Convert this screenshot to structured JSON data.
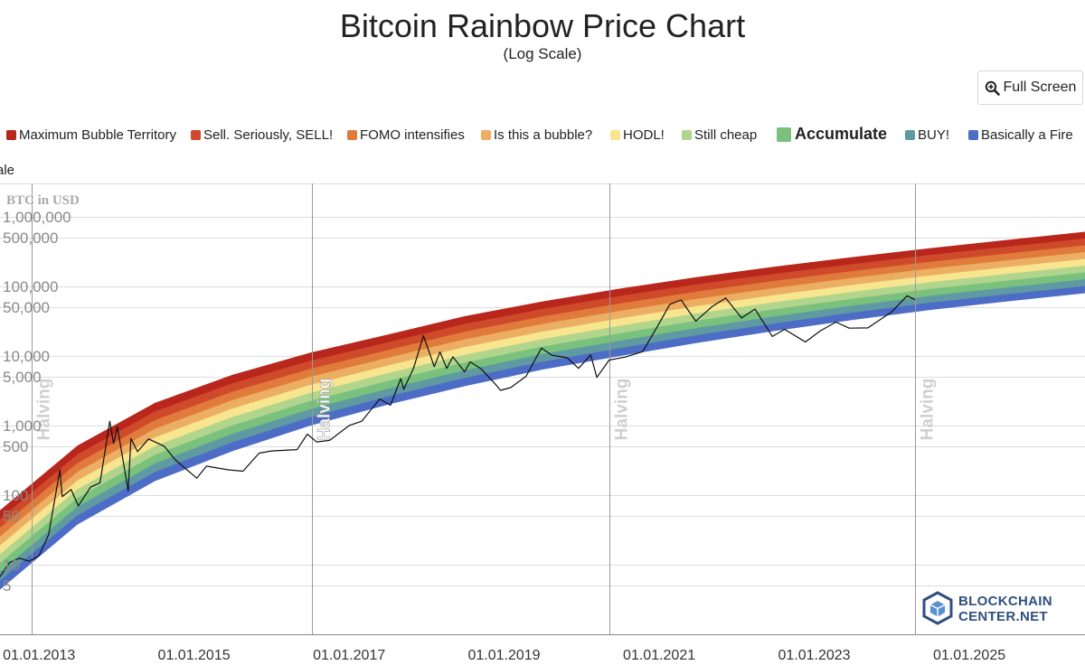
{
  "header": {
    "full_screen_label": "Full Screen"
  },
  "colors": {
    "bands": [
      "#b8261c",
      "#cf4a2a",
      "#e07b3c",
      "#ecae62",
      "#f8e58f",
      "#b1d58d",
      "#79c17d",
      "#5f9aa3",
      "#4d6cc5"
    ],
    "price_line": "#111111",
    "halving_line": "#9a9a9a",
    "grid": "#dddddd"
  },
  "chart_data": {
    "type": "line",
    "title": "Bitcoin Rainbow Price Chart",
    "subtitle": "(Log Scale)",
    "ylabel": "BTC in USD",
    "y_scale": "log",
    "ylim": [
      1,
      3000000
    ],
    "xlim": [
      "2012-07-01",
      "2026-06-30"
    ],
    "y_ticks": [
      {
        "value": 1000000,
        "label": "1,000,000"
      },
      {
        "value": 500000,
        "label": "500,000"
      },
      {
        "value": 100000,
        "label": "100,000"
      },
      {
        "value": 50000,
        "label": "50,000"
      },
      {
        "value": 10000,
        "label": "10,000"
      },
      {
        "value": 5000,
        "label": "5,000"
      },
      {
        "value": 1000,
        "label": "1,000"
      },
      {
        "value": 500,
        "label": "500"
      },
      {
        "value": 100,
        "label": "100"
      },
      {
        "value": 50,
        "label": "50"
      },
      {
        "value": 10,
        "label": "10"
      },
      {
        "value": 5,
        "label": "5"
      }
    ],
    "x_ticks": [
      {
        "date": "2013-01-01",
        "label": "01.01.2013"
      },
      {
        "date": "2015-01-01",
        "label": "01.01.2015"
      },
      {
        "date": "2017-01-01",
        "label": "01.01.2017"
      },
      {
        "date": "2019-01-01",
        "label": "01.01.2019"
      },
      {
        "date": "2021-01-01",
        "label": "01.01.2021"
      },
      {
        "date": "2023-01-01",
        "label": "01.01.2023"
      },
      {
        "date": "2025-01-01",
        "label": "01.01.2025"
      }
    ],
    "halvings": [
      {
        "date": "2012-11-28",
        "label": "Halving",
        "highlight": false
      },
      {
        "date": "2016-07-09",
        "label": "Halving",
        "highlight": true
      },
      {
        "date": "2020-05-11",
        "label": "Halving",
        "highlight": false
      },
      {
        "date": "2024-04-20",
        "label": "Halving",
        "highlight": false
      }
    ],
    "legend": [
      {
        "label": "Maximum Bubble Territory",
        "color": "#b8261c"
      },
      {
        "label": "Sell. Seriously, SELL!",
        "color": "#cf4a2a"
      },
      {
        "label": "FOMO intensifies",
        "color": "#e07b3c"
      },
      {
        "label": "Is this a bubble?",
        "color": "#ecae62"
      },
      {
        "label": "HODL!",
        "color": "#f8e58f"
      },
      {
        "label": "Still cheap",
        "color": "#b1d58d"
      },
      {
        "label": "Accumulate",
        "color": "#79c17d",
        "emphasized": true
      },
      {
        "label": "BUY!",
        "color": "#5f9aa3"
      },
      {
        "label": "Basically a Fire",
        "color": "#4d6cc5"
      }
    ],
    "legend_wrap_text": "Sale",
    "bands": {
      "count": 9,
      "lower_edge": [
        {
          "date": "2012-07-01",
          "value": 4.4
        },
        {
          "date": "2013-07-01",
          "value": 38
        },
        {
          "date": "2014-07-01",
          "value": 160
        },
        {
          "date": "2015-07-01",
          "value": 430
        },
        {
          "date": "2016-07-01",
          "value": 1000
        },
        {
          "date": "2017-07-01",
          "value": 2000
        },
        {
          "date": "2018-07-01",
          "value": 3700
        },
        {
          "date": "2019-07-01",
          "value": 6400
        },
        {
          "date": "2020-07-01",
          "value": 10000
        },
        {
          "date": "2021-07-01",
          "value": 15500
        },
        {
          "date": "2022-07-01",
          "value": 23000
        },
        {
          "date": "2023-07-01",
          "value": 33000
        },
        {
          "date": "2024-07-01",
          "value": 46000
        },
        {
          "date": "2025-07-01",
          "value": 61000
        },
        {
          "date": "2026-06-30",
          "value": 80000
        }
      ],
      "upper_edge": [
        {
          "date": "2012-07-01",
          "value": 60
        },
        {
          "date": "2013-07-01",
          "value": 510
        },
        {
          "date": "2014-07-01",
          "value": 2100
        },
        {
          "date": "2015-07-01",
          "value": 5300
        },
        {
          "date": "2016-07-01",
          "value": 11000
        },
        {
          "date": "2017-07-01",
          "value": 20000
        },
        {
          "date": "2018-07-01",
          "value": 37000
        },
        {
          "date": "2019-07-01",
          "value": 60000
        },
        {
          "date": "2020-07-01",
          "value": 92000
        },
        {
          "date": "2021-07-01",
          "value": 135000
        },
        {
          "date": "2022-07-01",
          "value": 190000
        },
        {
          "date": "2023-07-01",
          "value": 260000
        },
        {
          "date": "2024-07-01",
          "value": 350000
        },
        {
          "date": "2025-07-01",
          "value": 460000
        },
        {
          "date": "2026-06-30",
          "value": 600000
        }
      ]
    },
    "price_series": {
      "name": "BTC price (USD)",
      "points": [
        {
          "date": "2012-07-01",
          "value": 6.7
        },
        {
          "date": "2012-08-15",
          "value": 10.8
        },
        {
          "date": "2012-10-01",
          "value": 12.4
        },
        {
          "date": "2012-11-15",
          "value": 11.2
        },
        {
          "date": "2013-01-01",
          "value": 13.5
        },
        {
          "date": "2013-02-15",
          "value": 27
        },
        {
          "date": "2013-04-09",
          "value": 230
        },
        {
          "date": "2013-04-20",
          "value": 95
        },
        {
          "date": "2013-06-01",
          "value": 120
        },
        {
          "date": "2013-07-05",
          "value": 70
        },
        {
          "date": "2013-09-01",
          "value": 130
        },
        {
          "date": "2013-10-15",
          "value": 150
        },
        {
          "date": "2013-11-30",
          "value": 1150
        },
        {
          "date": "2013-12-18",
          "value": 550
        },
        {
          "date": "2014-01-05",
          "value": 950
        },
        {
          "date": "2014-02-25",
          "value": 115
        },
        {
          "date": "2014-03-10",
          "value": 650
        },
        {
          "date": "2014-04-10",
          "value": 420
        },
        {
          "date": "2014-06-01",
          "value": 640
        },
        {
          "date": "2014-08-15",
          "value": 500
        },
        {
          "date": "2014-10-05",
          "value": 320
        },
        {
          "date": "2015-01-14",
          "value": 175
        },
        {
          "date": "2015-03-01",
          "value": 260
        },
        {
          "date": "2015-06-15",
          "value": 230
        },
        {
          "date": "2015-08-20",
          "value": 220
        },
        {
          "date": "2015-11-04",
          "value": 400
        },
        {
          "date": "2016-01-01",
          "value": 430
        },
        {
          "date": "2016-05-01",
          "value": 450
        },
        {
          "date": "2016-06-18",
          "value": 750
        },
        {
          "date": "2016-08-01",
          "value": 580
        },
        {
          "date": "2016-10-01",
          "value": 610
        },
        {
          "date": "2017-01-01",
          "value": 1000
        },
        {
          "date": "2017-03-01",
          "value": 1150
        },
        {
          "date": "2017-05-25",
          "value": 2400
        },
        {
          "date": "2017-07-15",
          "value": 1950
        },
        {
          "date": "2017-09-01",
          "value": 4700
        },
        {
          "date": "2017-09-15",
          "value": 3300
        },
        {
          "date": "2017-11-01",
          "value": 6700
        },
        {
          "date": "2017-12-17",
          "value": 19500
        },
        {
          "date": "2018-02-06",
          "value": 7000
        },
        {
          "date": "2018-03-05",
          "value": 11400
        },
        {
          "date": "2018-04-06",
          "value": 6600
        },
        {
          "date": "2018-05-05",
          "value": 9700
        },
        {
          "date": "2018-06-29",
          "value": 5900
        },
        {
          "date": "2018-07-25",
          "value": 8200
        },
        {
          "date": "2018-09-15",
          "value": 6500
        },
        {
          "date": "2018-11-25",
          "value": 3800
        },
        {
          "date": "2018-12-15",
          "value": 3200
        },
        {
          "date": "2019-02-01",
          "value": 3500
        },
        {
          "date": "2019-04-15",
          "value": 5100
        },
        {
          "date": "2019-06-26",
          "value": 12900
        },
        {
          "date": "2019-08-15",
          "value": 10200
        },
        {
          "date": "2019-10-25",
          "value": 9400
        },
        {
          "date": "2019-12-18",
          "value": 6600
        },
        {
          "date": "2020-02-13",
          "value": 10300
        },
        {
          "date": "2020-03-13",
          "value": 4900
        },
        {
          "date": "2020-05-10",
          "value": 8700
        },
        {
          "date": "2020-07-25",
          "value": 9600
        },
        {
          "date": "2020-10-15",
          "value": 11500
        },
        {
          "date": "2020-12-31",
          "value": 29000
        },
        {
          "date": "2021-02-20",
          "value": 55000
        },
        {
          "date": "2021-04-14",
          "value": 63500
        },
        {
          "date": "2021-06-22",
          "value": 31500
        },
        {
          "date": "2021-09-07",
          "value": 51000
        },
        {
          "date": "2021-11-10",
          "value": 67500
        },
        {
          "date": "2022-01-24",
          "value": 35000
        },
        {
          "date": "2022-03-28",
          "value": 47000
        },
        {
          "date": "2022-06-18",
          "value": 19000
        },
        {
          "date": "2022-08-15",
          "value": 24000
        },
        {
          "date": "2022-11-21",
          "value": 15800
        },
        {
          "date": "2023-01-31",
          "value": 23000
        },
        {
          "date": "2023-04-14",
          "value": 30500
        },
        {
          "date": "2023-06-15",
          "value": 25000
        },
        {
          "date": "2023-09-11",
          "value": 25200
        },
        {
          "date": "2023-12-31",
          "value": 42500
        },
        {
          "date": "2024-03-14",
          "value": 73000
        },
        {
          "date": "2024-04-20",
          "value": 64000
        }
      ]
    }
  }
}
